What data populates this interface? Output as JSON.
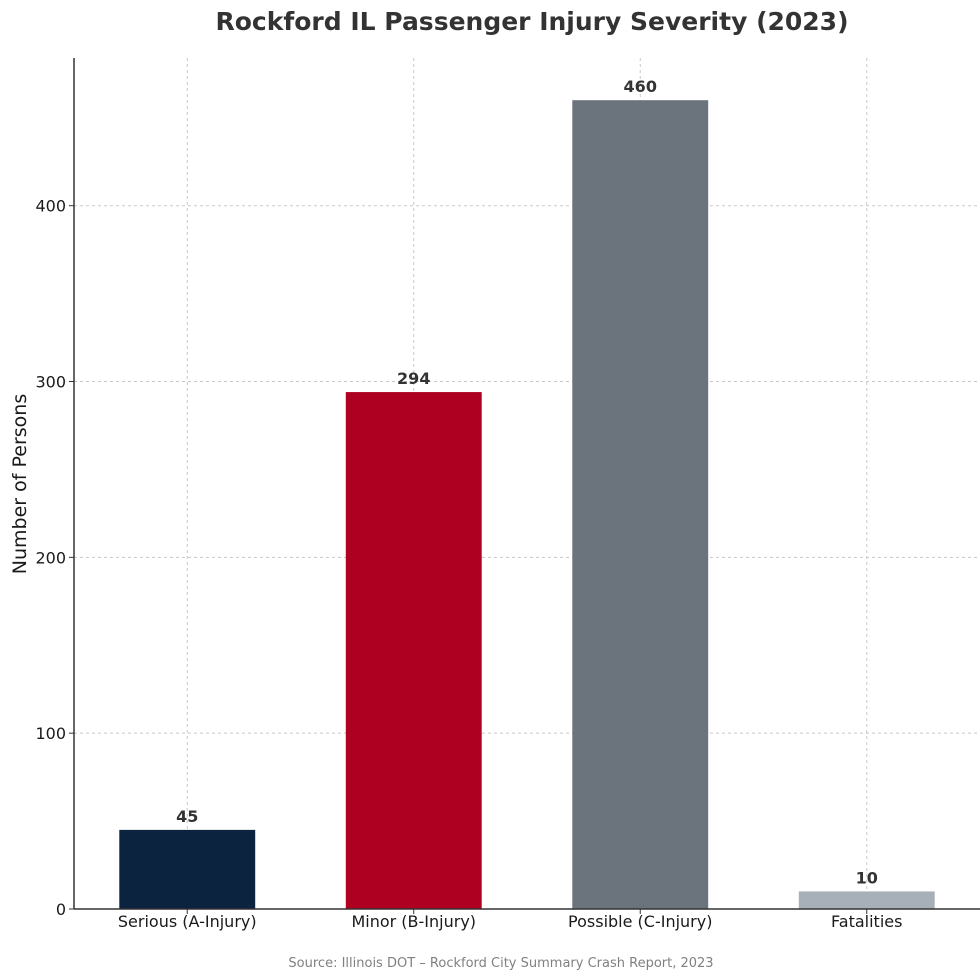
{
  "chart_data": {
    "type": "bar",
    "title": "Rockford IL Passenger Injury Severity (2023)",
    "xlabel": "",
    "ylabel": "Number of Persons",
    "categories": [
      "Serious (A-Injury)",
      "Minor (B-Injury)",
      "Possible (C-Injury)",
      "Fatalities"
    ],
    "values": [
      45,
      294,
      460,
      10
    ],
    "value_labels": [
      "45",
      "294",
      "460",
      "10"
    ],
    "colors": [
      "#0c2340",
      "#ae0020",
      "#6b737d",
      "#a7b0b9"
    ],
    "ylim": [
      0,
      484
    ],
    "yticks": [
      0,
      100,
      200,
      300,
      400
    ],
    "ytick_labels": [
      "0",
      "100",
      "200",
      "300",
      "400"
    ],
    "grid": true,
    "source": "Source: Illinois DOT – Rockford City Summary Crash Report, 2023"
  }
}
